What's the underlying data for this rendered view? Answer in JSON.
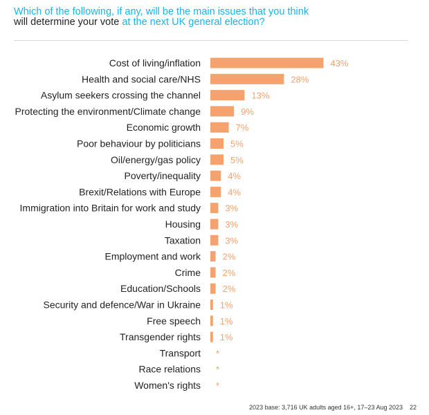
{
  "header": {
    "question_part1": "Which of the following, if any, will be the main issues that you think",
    "question_part2_dark": "will determine your vote",
    "question_part3": " at the next UK general election?"
  },
  "chart_data": {
    "type": "bar",
    "orientation": "horizontal",
    "title": "Which of the following, if any, will be the main issues that you think will determine your vote at the next UK general election?",
    "categories": [
      "Cost of living/inflation",
      "Health and social care/NHS",
      "Asylum seekers crossing the channel",
      "Protecting the environment/Climate change",
      "Economic growth",
      "Poor behaviour by politicians",
      "Oil/energy/gas policy",
      "Poverty/inequality",
      "Brexit/Relations with Europe",
      "Immigration into Britain for work and study",
      "Housing",
      "Taxation",
      "Employment and work",
      "Crime",
      "Education/Schools",
      "Security and defence/War in Ukraine",
      "Free speech",
      "Transgender rights",
      "Transport",
      "Race relations",
      "Women's rights"
    ],
    "values": [
      43,
      28,
      13,
      9,
      7,
      5,
      5,
      4,
      4,
      3,
      3,
      3,
      2,
      2,
      2,
      1,
      1,
      1,
      0,
      0,
      0
    ],
    "data_labels": [
      "43%",
      "28%",
      "13%",
      "9%",
      "7%",
      "5%",
      "5%",
      "4%",
      "4%",
      "3%",
      "3%",
      "3%",
      "2%",
      "2%",
      "2%",
      "1%",
      "1%",
      "1%",
      "*",
      "*",
      "*"
    ],
    "unit": "%",
    "bar_color": "#f5a26e",
    "label_color": "#f5a26e",
    "xlim": [
      0,
      45
    ],
    "grid": false,
    "legend": "none"
  },
  "footer": {
    "base": "2023 base: 3,716 UK adults aged 16+, 17–23 Aug 2023",
    "page": "22"
  }
}
